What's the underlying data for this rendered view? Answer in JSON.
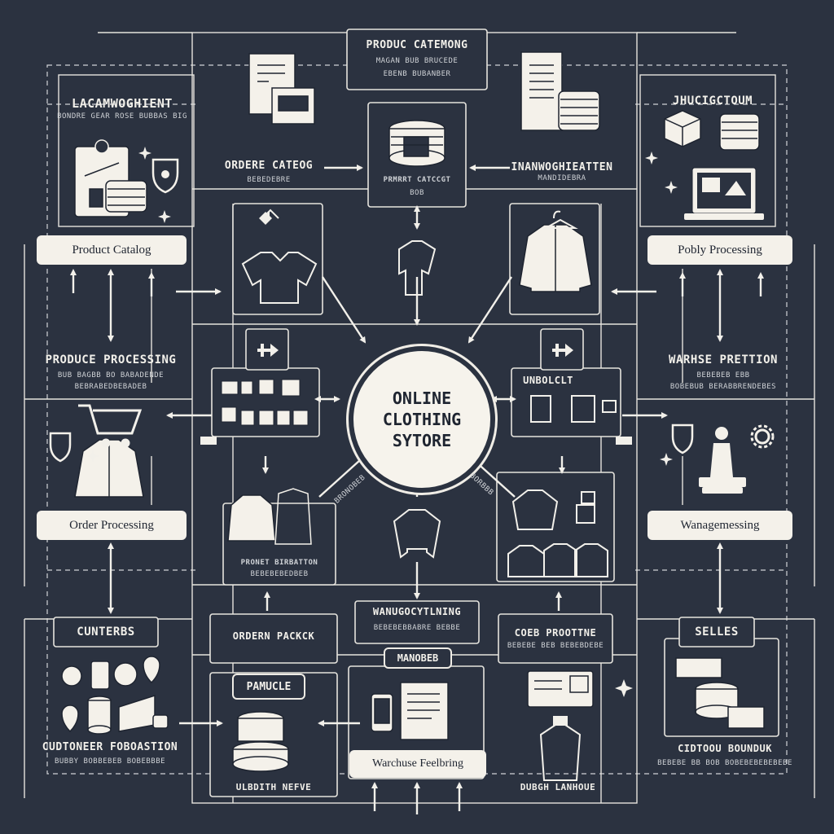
{
  "hub": {
    "line1": "ONLINE",
    "line2": "CLOTHING",
    "line3": "SYTORE"
  },
  "top": {
    "title": "PRODUC CATEMONG",
    "sub1": "MAGAN BUB BRUCEDE",
    "sub2": "EBENB BUBANBER"
  },
  "top_left": {
    "title": "LACAMWOGHIENT",
    "sub": "BONDRE GEAR ROSE BUBBAS BIG"
  },
  "top_right": {
    "title": "JHUCIGCTOUM"
  },
  "orders_catalog": {
    "title": "ORDERE CATEOG",
    "sub": "BEBEDEBRE"
  },
  "center_top_card": {
    "title": "PRMRRT CATCCGT",
    "sub": "BOB"
  },
  "inventory": {
    "title": "INANWOGHIEATTEN",
    "sub": "MANDIDEBRA"
  },
  "left_pills": [
    "Product Catalog",
    "Order Processing"
  ],
  "right_pills": [
    "Pobly Processing",
    "Wanagemessing"
  ],
  "produce_processing": {
    "title": "PRODUCE PROCESSING",
    "sub1": "BUB BAGBB BO BABADENDE",
    "sub2": "BEBRABEDBEBADEB"
  },
  "warehouse_prediction": {
    "title": "WARHSE PRETTION",
    "sub1": "BEBEBEB EBB",
    "sub2": "BOBEBUB BERABBRENDEBES"
  },
  "unproduct": {
    "title": "UNBOLCLT"
  },
  "product_distribution": {
    "title": "PRONET BIRBATTON",
    "sub": "BEBEBEBEDBEB"
  },
  "left_arrow_label": "BRONOBEB",
  "right_arrow_label": "BORBBB",
  "customers": "CUNTERBS",
  "order_pack": "ORDERN PACKCK",
  "warehouse_center": {
    "title": "WANUGOCYTLNING",
    "sub": "BEBEBEBBABRE BEBBE"
  },
  "manager_box": "MANOBEB",
  "code_profile": {
    "title": "COEB PROOTTNE",
    "sub": "BEBEBE BEB BEBEBDEBE"
  },
  "selles": "SELLES",
  "pamucle": "PAMUCLE",
  "customer_foundation": {
    "title": "CUDTONEER FOBOASTION",
    "sub": "BUBBY BOBBEBEB BOBEBBBE"
  },
  "warehouse_feeding": "Warchuse Feelbring",
  "custom_bounduk": {
    "title": "CIDTOOU BOUNDUK",
    "sub": "BEBEBE BB BOB BOBEBEBEBEBEBE"
  },
  "bottom_left_label": "ULBDITH NEFVE",
  "bottom_right_label": "DUBGH LANHOUE",
  "colors": {
    "background": "#2b3240",
    "ink": "#f2f0ea",
    "pill": "#f4f1ea"
  },
  "icons": [
    "document-icon",
    "coin-stack-icon",
    "shirt-icon",
    "jacket-icon",
    "hanger-icon",
    "cart-icon",
    "shield-icon",
    "laptop-icon",
    "phone-icon",
    "location-pin-icon",
    "sparkle-icon",
    "boxes-icon"
  ]
}
